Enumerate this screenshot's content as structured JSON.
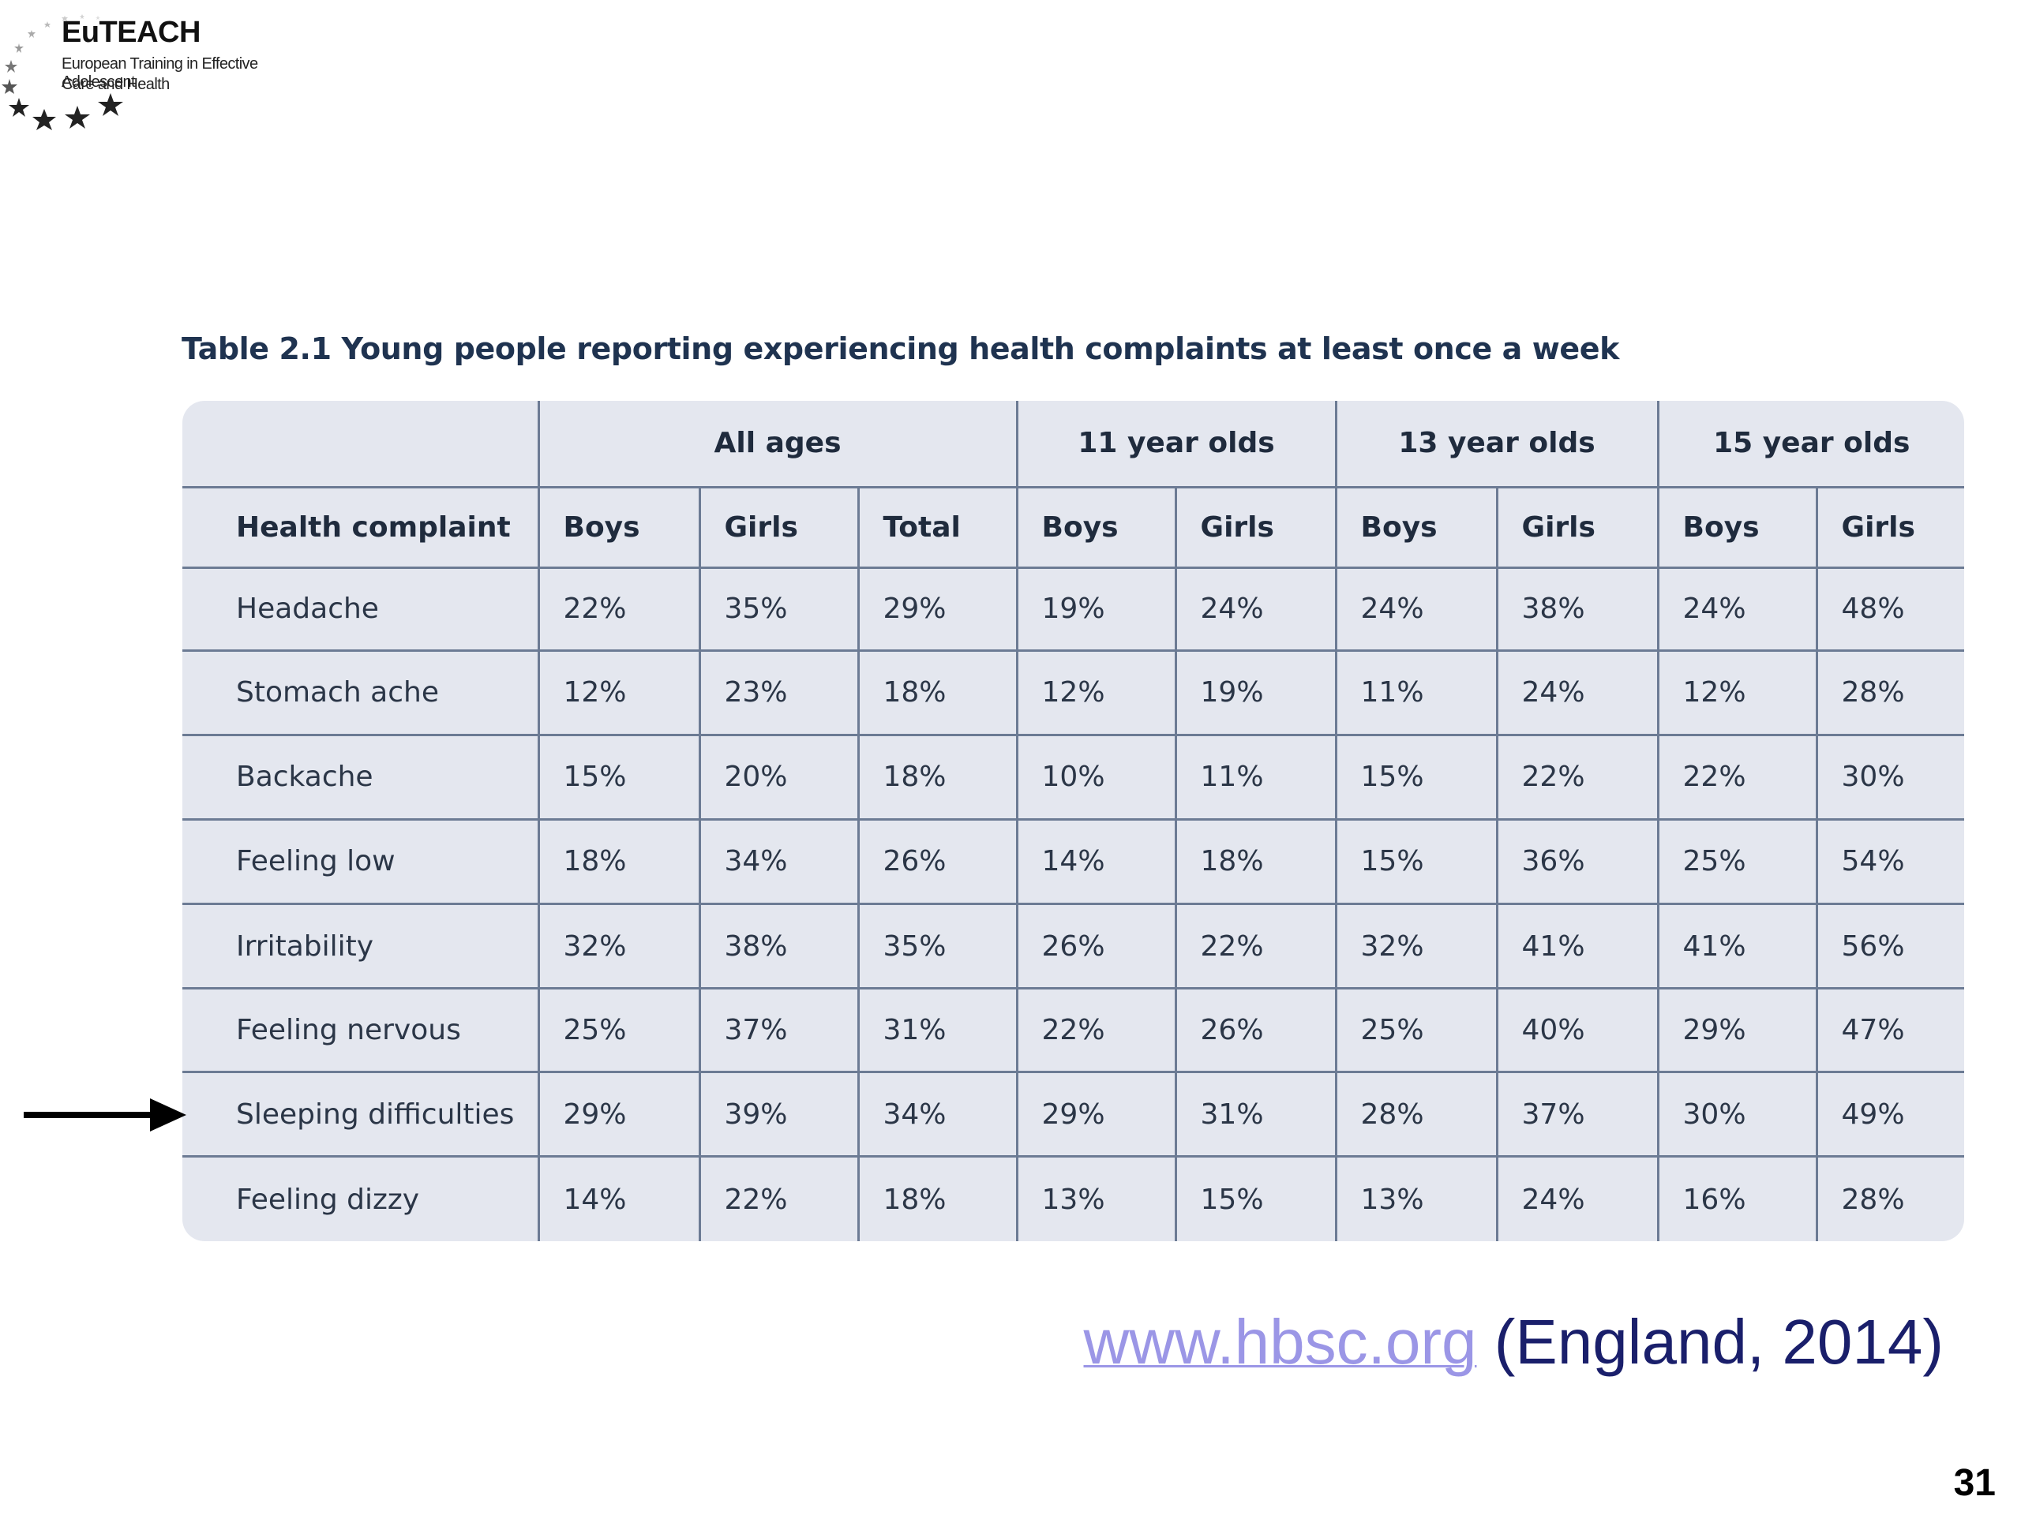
{
  "logo": {
    "title": "EuTEACH",
    "subtitle_line1": "European Training in Effective Adolescent",
    "subtitle_line2": "Care and Health"
  },
  "table": {
    "caption": "Table 2.1 Young people reporting experiencing health complaints at least once a week",
    "age_groups": [
      "All ages",
      "11 year olds",
      "13 year olds",
      "15 year olds"
    ],
    "column_headers": [
      "Health complaint",
      "Boys",
      "Girls",
      "Total",
      "Boys",
      "Girls",
      "Boys",
      "Girls",
      "Boys",
      "Girls"
    ],
    "rows": [
      [
        "Headache",
        "22%",
        "35%",
        "29%",
        "19%",
        "24%",
        "24%",
        "38%",
        "24%",
        "48%"
      ],
      [
        "Stomach ache",
        "12%",
        "23%",
        "18%",
        "12%",
        "19%",
        "11%",
        "24%",
        "12%",
        "28%"
      ],
      [
        "Backache",
        "15%",
        "20%",
        "18%",
        "10%",
        "11%",
        "15%",
        "22%",
        "22%",
        "30%"
      ],
      [
        "Feeling low",
        "18%",
        "34%",
        "26%",
        "14%",
        "18%",
        "15%",
        "36%",
        "25%",
        "54%"
      ],
      [
        "Irritability",
        "32%",
        "38%",
        "35%",
        "26%",
        "22%",
        "32%",
        "41%",
        "41%",
        "56%"
      ],
      [
        "Feeling nervous",
        "25%",
        "37%",
        "31%",
        "22%",
        "26%",
        "25%",
        "40%",
        "29%",
        "47%"
      ],
      [
        "Sleeping difficulties",
        "29%",
        "39%",
        "34%",
        "29%",
        "31%",
        "28%",
        "37%",
        "30%",
        "49%"
      ],
      [
        "Feeling dizzy",
        "14%",
        "22%",
        "18%",
        "13%",
        "15%",
        "13%",
        "24%",
        "16%",
        "28%"
      ]
    ],
    "highlighted_row": "Sleeping difficulties"
  },
  "source": {
    "link_text": "www.hbsc.org",
    "note": " (England, 2014)"
  },
  "page_number": "31",
  "colors": {
    "table_bg": "#e4e7ef",
    "grid_line": "#6c7b94",
    "caption_text": "#1f3350",
    "link": "#9b96e6",
    "source_note": "#1a1f6b"
  },
  "icons": [
    "euteach-star-ring-logo",
    "arrow-right-icon"
  ]
}
